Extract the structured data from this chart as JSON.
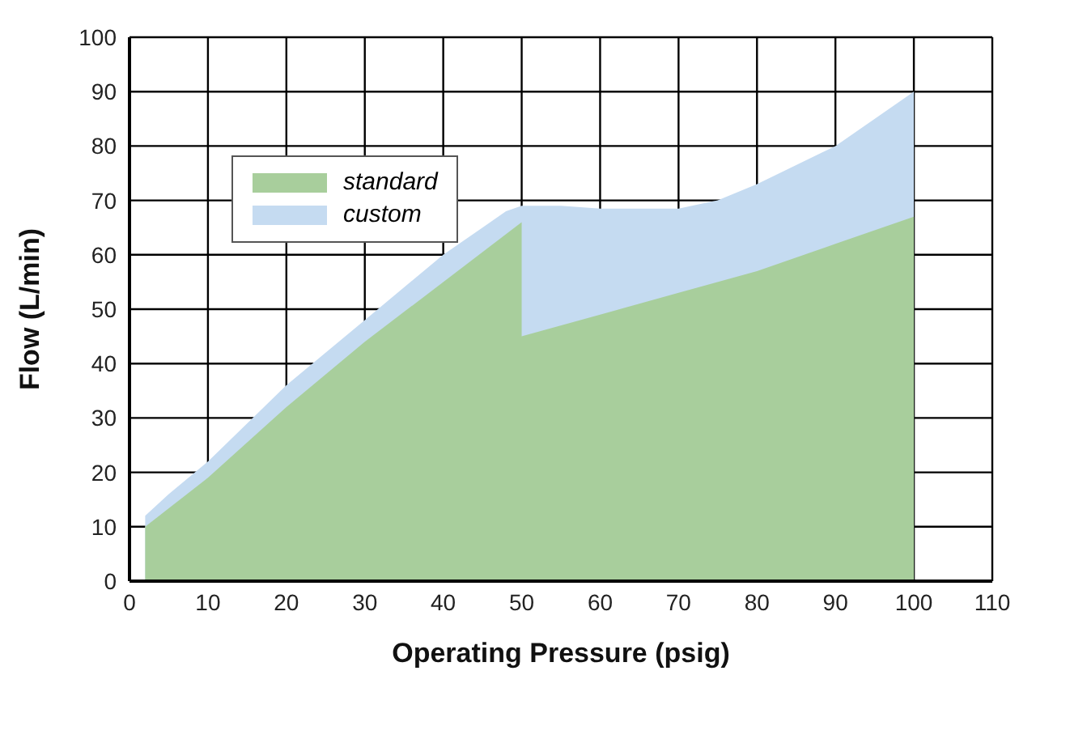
{
  "chart_data": {
    "type": "area",
    "xlabel": "Operating Pressure (psig)",
    "ylabel": "Flow  (L/min)",
    "xlim": [
      0,
      110
    ],
    "xticks": [
      0,
      10,
      20,
      30,
      40,
      50,
      60,
      70,
      80,
      90,
      100,
      110
    ],
    "ylim": [
      0,
      100
    ],
    "yticks": [
      0,
      10,
      20,
      30,
      40,
      50,
      60,
      70,
      80,
      90,
      100
    ],
    "grid": true,
    "legend": "top left",
    "series": [
      {
        "name": "custom",
        "color": "#c5dbf1",
        "x": [
          2,
          5,
          10,
          20,
          30,
          40,
          45,
          48,
          50,
          55,
          60,
          70,
          75,
          80,
          90,
          100
        ],
        "values": [
          12,
          16,
          22,
          36,
          48,
          60,
          65,
          68,
          69,
          69,
          68.5,
          68.5,
          70,
          73,
          80,
          90
        ]
      },
      {
        "name": "standard",
        "color": "#a8ce9c",
        "x": [
          2,
          10,
          20,
          30,
          40,
          50,
          50,
          60,
          70,
          80,
          90,
          100
        ],
        "values": [
          10,
          19,
          32,
          44,
          55,
          66,
          45,
          49,
          53,
          57,
          62,
          67
        ]
      }
    ]
  }
}
